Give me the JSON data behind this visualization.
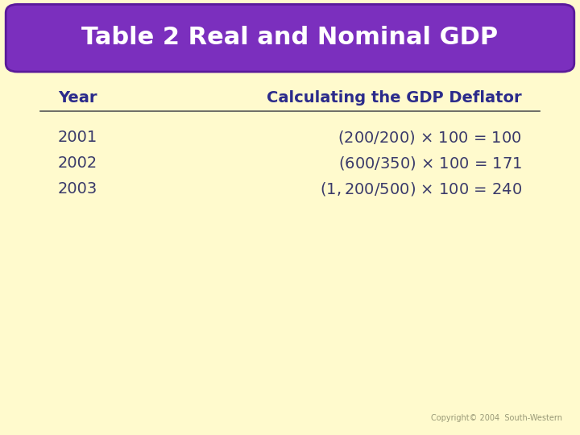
{
  "title": "Table 2 Real and Nominal GDP",
  "title_color": "#ffffff",
  "title_bg_color": "#7B2FBE",
  "background_color": "#FFFACD",
  "col1_header": "Year",
  "col2_header": "Calculating the GDP Deflator",
  "header_color": "#2B2B8B",
  "rows": [
    [
      "2001",
      "($200/$200) × 100 = 100"
    ],
    [
      "2002",
      "($600/$350) × 100 = 171"
    ],
    [
      "2003",
      "($1,200/$500) × 100 = 240"
    ]
  ],
  "row_color": "#3A3A6A",
  "copyright_text": "Copyright© 2004  South-Western",
  "copyright_color": "#999977"
}
